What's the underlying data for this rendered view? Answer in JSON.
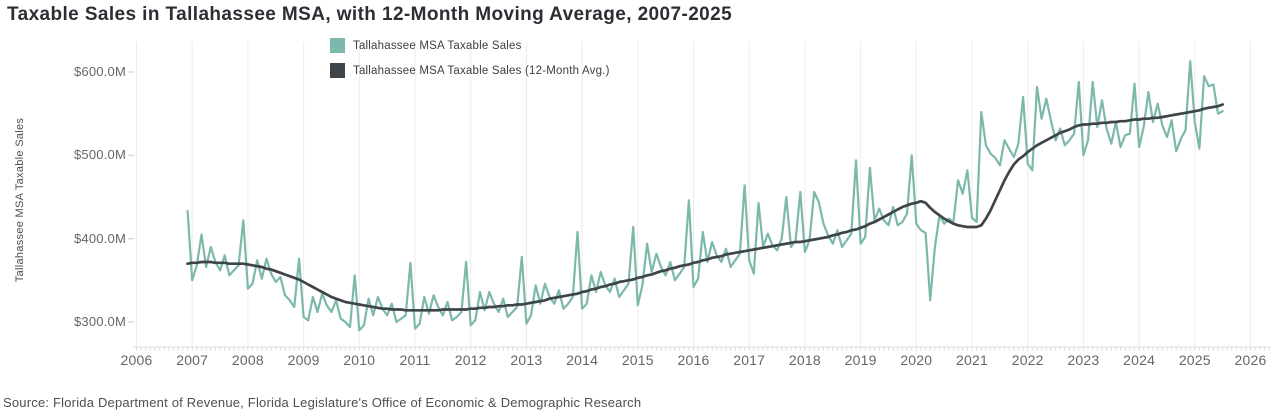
{
  "header": {
    "title": "Taxable Sales in Tallahassee MSA, with 12-Month Moving Average, 2007-2025"
  },
  "legend": {
    "items": [
      {
        "label": "Tallahassee MSA Taxable Sales",
        "color": "#7cb8ac"
      },
      {
        "label": "Tallahassee MSA Taxable Sales (12-Month Avg.)",
        "color": "#3f4448"
      }
    ]
  },
  "axes": {
    "y_title": "Tallahassee MSA Taxable Sales",
    "y_ticks": [
      {
        "value": 600,
        "label": "$600.0M"
      },
      {
        "value": 500,
        "label": "$500.0M"
      },
      {
        "value": 400,
        "label": "$400.0M"
      },
      {
        "value": 300,
        "label": "$300.0M"
      }
    ],
    "x_ticks": [
      "2006",
      "2007",
      "2008",
      "2009",
      "2010",
      "2011",
      "2012",
      "2013",
      "2014",
      "2015",
      "2016",
      "2017",
      "2018",
      "2019",
      "2020",
      "2021",
      "2022",
      "2023",
      "2024",
      "2025",
      "2026"
    ]
  },
  "footer": {
    "source": "Source: Florida Department of Revenue, Florida Legislature's Office of Economic & Demographic Research"
  },
  "colors": {
    "sales_line": "#7cb8ac",
    "avg_line": "#3f4448",
    "gridline": "#ececec",
    "axis": "#dcdcdc",
    "tick": "#cccccc",
    "background": "#ffffff"
  },
  "chart_data": {
    "type": "line",
    "title": "Taxable Sales in Tallahassee MSA, with 12-Month Moving Average, 2007-2025",
    "xlabel": "",
    "ylabel": "Tallahassee MSA Taxable Sales",
    "y_unit": "USD millions",
    "ylim": [
      280,
      640
    ],
    "xlim_years": [
      2006,
      2026.3
    ],
    "grid": "vertical-years-only",
    "legend_position": "top-center",
    "x_start": "2006-12",
    "x_freq": "monthly",
    "series": [
      {
        "name": "Tallahassee MSA Taxable Sales",
        "color": "#7cb8ac",
        "values": [
          433,
          350,
          368,
          405,
          366,
          390,
          372,
          362,
          380,
          356,
          362,
          368,
          422,
          340,
          346,
          374,
          352,
          376,
          358,
          348,
          354,
          332,
          326,
          318,
          376,
          306,
          302,
          330,
          312,
          334,
          320,
          312,
          326,
          304,
          300,
          294,
          356,
          290,
          296,
          328,
          308,
          330,
          316,
          308,
          322,
          300,
          304,
          308,
          371,
          292,
          298,
          330,
          310,
          332,
          318,
          308,
          324,
          302,
          306,
          312,
          372,
          296,
          302,
          336,
          314,
          336,
          322,
          312,
          328,
          306,
          312,
          318,
          378,
          298,
          308,
          344,
          322,
          346,
          330,
          322,
          338,
          316,
          322,
          330,
          408,
          316,
          322,
          356,
          336,
          360,
          344,
          336,
          352,
          330,
          338,
          346,
          414,
          320,
          344,
          394,
          360,
          382,
          366,
          356,
          372,
          350,
          358,
          366,
          446,
          342,
          352,
          408,
          372,
          396,
          380,
          372,
          388,
          366,
          374,
          382,
          464,
          374,
          358,
          443,
          390,
          406,
          392,
          386,
          400,
          450,
          390,
          398,
          456,
          384,
          398,
          456,
          444,
          418,
          404,
          394,
          410,
          390,
          398,
          406,
          494,
          394,
          402,
          485,
          422,
          436,
          422,
          416,
          438,
          416,
          420,
          430,
          500,
          418,
          410,
          407,
          326,
          390,
          428,
          418,
          424,
          420,
          470,
          454,
          482,
          425,
          420,
          552,
          512,
          502,
          497,
          488,
          518,
          508,
          498,
          514,
          570,
          490,
          482,
          582,
          544,
          568,
          542,
          518,
          532,
          512,
          518,
          526,
          588,
          500,
          518,
          588,
          534,
          566,
          532,
          514,
          540,
          510,
          524,
          526,
          586,
          510,
          534,
          576,
          540,
          562,
          536,
          522,
          542,
          505,
          520,
          530,
          613,
          540,
          508,
          595,
          583,
          585,
          550,
          553
        ]
      },
      {
        "name": "Tallahassee MSA Taxable Sales (12-Month Avg.)",
        "color": "#3f4448",
        "values": [
          370,
          371,
          371,
          372,
          372,
          372,
          371,
          371,
          371,
          370,
          370,
          370,
          370,
          369,
          368,
          367,
          366,
          364,
          363,
          361,
          359,
          357,
          355,
          353,
          351,
          348,
          345,
          342,
          339,
          336,
          333,
          330,
          328,
          326,
          324,
          323,
          322,
          321,
          320,
          319,
          318,
          317,
          316,
          316,
          315,
          315,
          315,
          314,
          314,
          314,
          314,
          314,
          314,
          314,
          314,
          315,
          315,
          315,
          315,
          315,
          315,
          316,
          316,
          317,
          317,
          318,
          318,
          319,
          319,
          320,
          320,
          321,
          321,
          322,
          323,
          324,
          325,
          326,
          328,
          329,
          330,
          331,
          332,
          333,
          334,
          336,
          337,
          339,
          340,
          342,
          343,
          345,
          346,
          348,
          349,
          350,
          351,
          353,
          354,
          356,
          357,
          359,
          361,
          362,
          364,
          365,
          367,
          368,
          369,
          371,
          372,
          374,
          375,
          377,
          378,
          379,
          381,
          382,
          383,
          384,
          385,
          386,
          387,
          388,
          389,
          390,
          391,
          392,
          393,
          394,
          395,
          396,
          396,
          397,
          398,
          399,
          400,
          401,
          402,
          404,
          405,
          407,
          408,
          410,
          411,
          413,
          415,
          418,
          420,
          423,
          426,
          429,
          432,
          435,
          438,
          440,
          442,
          443,
          445,
          443,
          437,
          432,
          428,
          424,
          421,
          418,
          416,
          415,
          414,
          414,
          414,
          416,
          424,
          434,
          446,
          458,
          470,
          480,
          489,
          495,
          499,
          504,
          508,
          512,
          515,
          518,
          521,
          524,
          527,
          529,
          531,
          534,
          536,
          537,
          537,
          538,
          538,
          539,
          539,
          540,
          540,
          541,
          541,
          542,
          543,
          543,
          544,
          544,
          545,
          545,
          546,
          547,
          548,
          549,
          550,
          551,
          552,
          553,
          554,
          556,
          557,
          558,
          559,
          561
        ]
      }
    ]
  }
}
